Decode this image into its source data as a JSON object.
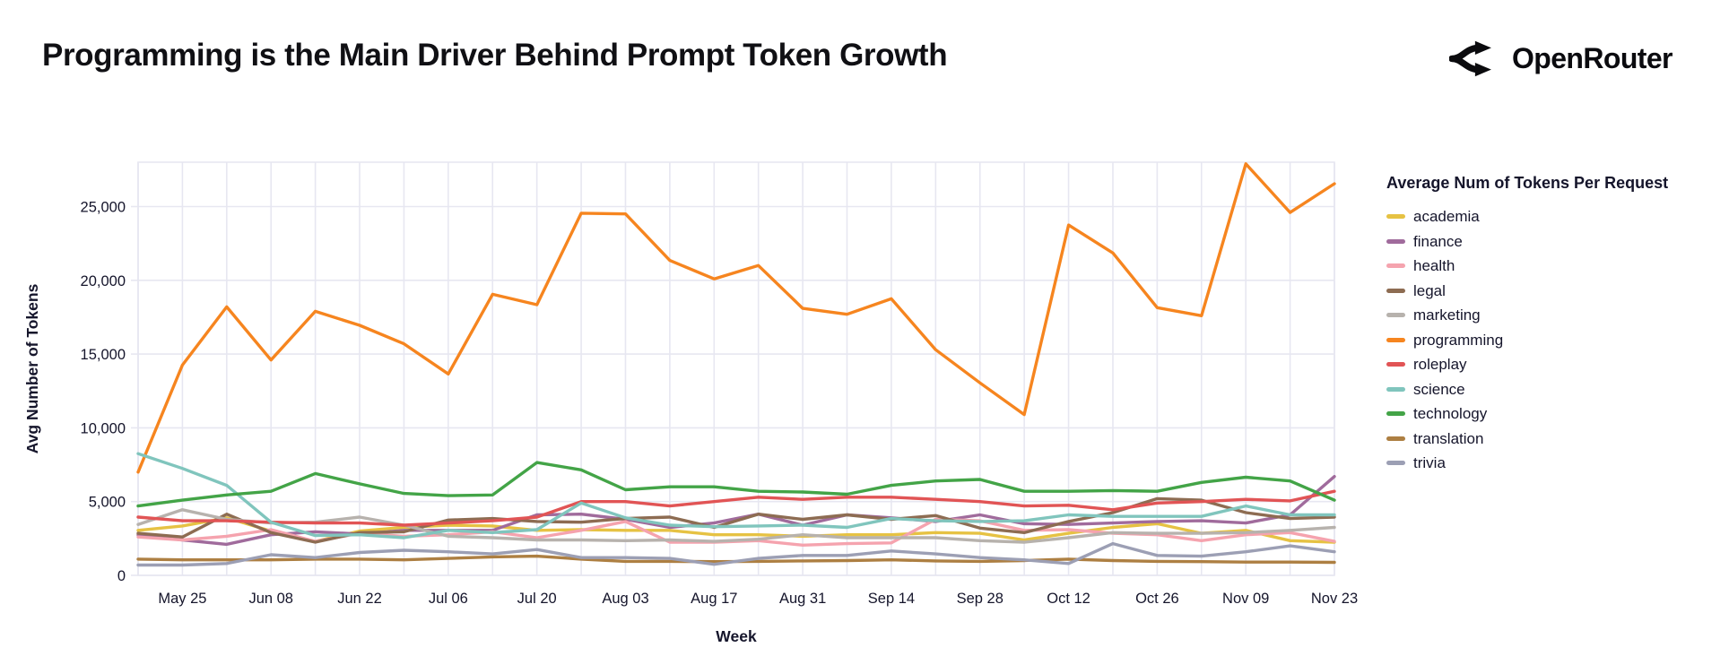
{
  "page": {
    "title": "Programming is the Main Driver Behind Prompt Token Growth",
    "brand": "OpenRouter"
  },
  "colors": {
    "background": "#ffffff",
    "text_dark": "#15152b",
    "grid": "#e7e7f1"
  },
  "chart_data": {
    "type": "line",
    "x": {
      "label": "Week",
      "categories": [
        "May 18",
        "May 25",
        "Jun 01",
        "Jun 08",
        "Jun 15",
        "Jun 22",
        "Jun 29",
        "Jul 06",
        "Jul 13",
        "Jul 20",
        "Jul 27",
        "Aug 03",
        "Aug 10",
        "Aug 17",
        "Aug 24",
        "Aug 31",
        "Sep 07",
        "Sep 14",
        "Sep 21",
        "Sep 28",
        "Oct 05",
        "Oct 12",
        "Oct 19",
        "Oct 26",
        "Nov 02",
        "Nov 09",
        "Nov 16",
        "Nov 23"
      ],
      "tick_labels": [
        "May 25",
        "Jun 08",
        "Jun 22",
        "Jul 06",
        "Jul 20",
        "Aug 03",
        "Aug 17",
        "Aug 31",
        "Sep 14",
        "Sep 28",
        "Oct 12",
        "Oct 26",
        "Nov 09",
        "Nov 23"
      ]
    },
    "y": {
      "label": "Avg Number of Tokens",
      "ticks": [
        {
          "value": 0,
          "label": "0"
        },
        {
          "value": 5000,
          "label": "5,000"
        },
        {
          "value": 10000,
          "label": "10,000"
        },
        {
          "value": 15000,
          "label": "15,000"
        },
        {
          "value": 20000,
          "label": "20,000"
        },
        {
          "value": 25000,
          "label": "25,000"
        }
      ],
      "max": 28000
    },
    "legend": {
      "title": "Average Num of Tokens Per Request",
      "position": "right"
    },
    "series": [
      {
        "name": "academia",
        "color": "#e6c243",
        "values": [
          3050,
          3350,
          3900,
          3000,
          2300,
          3000,
          3250,
          3400,
          3350,
          3050,
          3100,
          3050,
          3050,
          2750,
          2750,
          2650,
          2750,
          2750,
          2900,
          2850,
          2400,
          2850,
          3250,
          3500,
          2850,
          3050,
          2350,
          2250
        ]
      },
      {
        "name": "finance",
        "color": "#a06b9c",
        "values": [
          2750,
          2400,
          2100,
          2750,
          2950,
          2800,
          3050,
          3050,
          3050,
          4100,
          4150,
          3800,
          3250,
          3550,
          4150,
          3400,
          4100,
          3900,
          3650,
          4100,
          3500,
          3450,
          3550,
          3650,
          3700,
          3550,
          4100,
          6700
        ]
      },
      {
        "name": "health",
        "color": "#f5a3ae",
        "values": [
          2600,
          2400,
          2650,
          3100,
          2300,
          2850,
          2650,
          2750,
          2950,
          2550,
          3050,
          3650,
          2250,
          2250,
          2350,
          2050,
          2150,
          2200,
          3800,
          3700,
          3050,
          3100,
          2850,
          2750,
          2350,
          2750,
          2900,
          2300
        ]
      },
      {
        "name": "legal",
        "color": "#8d6c52",
        "values": [
          2850,
          2600,
          4150,
          2900,
          2250,
          2900,
          2950,
          3750,
          3850,
          3650,
          3600,
          3850,
          3950,
          3250,
          4150,
          3800,
          4100,
          3800,
          4050,
          3200,
          2900,
          3650,
          4250,
          5200,
          5100,
          4250,
          3850,
          3950
        ]
      },
      {
        "name": "marketing",
        "color": "#b7b2ad",
        "values": [
          3450,
          4450,
          3800,
          3550,
          3600,
          3950,
          3400,
          2650,
          2550,
          2400,
          2400,
          2350,
          2400,
          2300,
          2450,
          2750,
          2550,
          2550,
          2550,
          2350,
          2250,
          2550,
          2900,
          2850,
          2850,
          2900,
          3050,
          3250
        ]
      },
      {
        "name": "programming",
        "color": "#f6851f",
        "values": [
          7000,
          14250,
          18200,
          14600,
          17900,
          16950,
          15700,
          13650,
          19050,
          18350,
          24550,
          24500,
          21350,
          20100,
          21000,
          18100,
          17700,
          18750,
          15300,
          13050,
          10900,
          23750,
          21850,
          18150,
          17600,
          27900,
          24600,
          26550
        ]
      },
      {
        "name": "roleplay",
        "color": "#e15455",
        "values": [
          3950,
          3700,
          3700,
          3600,
          3550,
          3550,
          3400,
          3550,
          3700,
          3950,
          5000,
          5000,
          4700,
          5000,
          5300,
          5150,
          5300,
          5300,
          5150,
          5000,
          4700,
          4750,
          4450,
          4900,
          5000,
          5150,
          5050,
          5700
        ]
      },
      {
        "name": "science",
        "color": "#80c5bd",
        "values": [
          8250,
          7250,
          6100,
          3600,
          2700,
          2750,
          2550,
          3050,
          2900,
          3100,
          4900,
          3900,
          3400,
          3300,
          3350,
          3400,
          3250,
          3850,
          3700,
          3650,
          3700,
          4100,
          4000,
          4000,
          4000,
          4700,
          4100,
          4100
        ]
      },
      {
        "name": "technology",
        "color": "#43a447",
        "values": [
          4700,
          5100,
          5450,
          5700,
          6900,
          6200,
          5550,
          5400,
          5450,
          7650,
          7150,
          5800,
          6000,
          6000,
          5700,
          5650,
          5500,
          6100,
          6400,
          6500,
          5700,
          5700,
          5750,
          5700,
          6300,
          6650,
          6400,
          5100
        ]
      },
      {
        "name": "translation",
        "color": "#ad7f42",
        "values": [
          1100,
          1050,
          1050,
          1050,
          1100,
          1100,
          1050,
          1150,
          1250,
          1300,
          1100,
          950,
          950,
          930,
          950,
          980,
          1000,
          1050,
          980,
          950,
          1000,
          1100,
          1000,
          950,
          930,
          900,
          900,
          880
        ]
      },
      {
        "name": "trivia",
        "color": "#9c9fb4",
        "values": [
          700,
          700,
          800,
          1400,
          1200,
          1550,
          1700,
          1600,
          1450,
          1750,
          1200,
          1200,
          1150,
          750,
          1150,
          1350,
          1350,
          1650,
          1450,
          1200,
          1050,
          800,
          2150,
          1350,
          1300,
          1600,
          2000,
          1600
        ]
      }
    ]
  }
}
